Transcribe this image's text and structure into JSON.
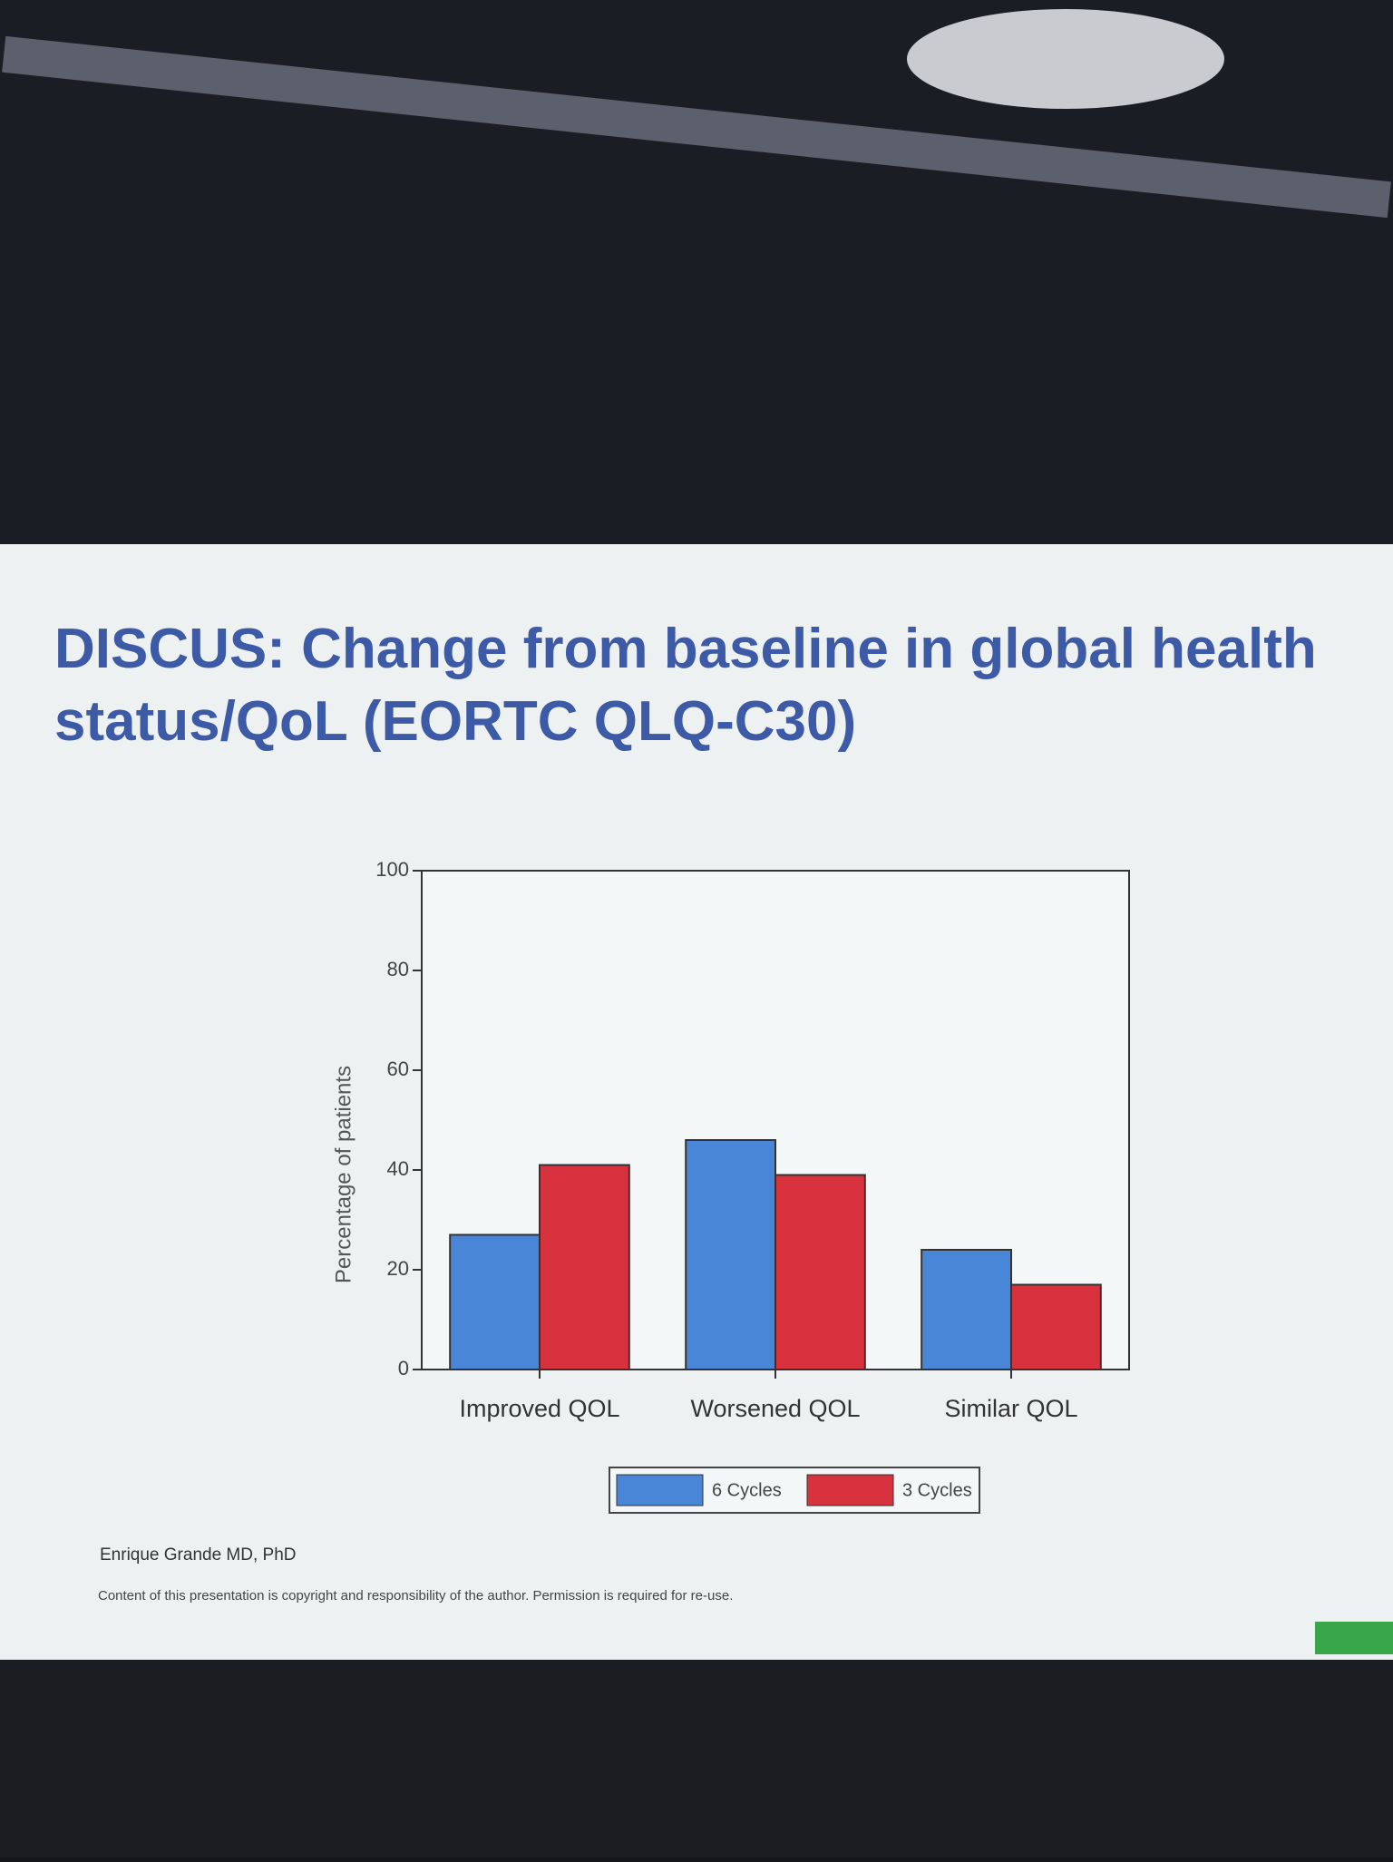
{
  "chart_data": {
    "type": "bar",
    "title": "DISCUS: Change from baseline in global health status/QoL (EORTC QLQ-C30)",
    "y_label": "Percentage of patients",
    "categories": [
      "Improved QOL",
      "Worsened QOL",
      "Similar QOL"
    ],
    "series": [
      {
        "name": "6 Cycles",
        "color": "#4a86d8",
        "values": [
          27,
          46,
          24
        ]
      },
      {
        "name": "3 Cycles",
        "color": "#d9323f",
        "values": [
          41,
          39,
          17
        ]
      }
    ],
    "ylim": [
      0,
      100
    ],
    "yticks": [
      0,
      20,
      40,
      60,
      80,
      100
    ],
    "grid": false,
    "legend": "bottom"
  },
  "footer": {
    "author": "Enrique Grande MD, PhD",
    "notice": "Content of this presentation is copyright and responsibility of the author. Permission is required for re-use."
  }
}
